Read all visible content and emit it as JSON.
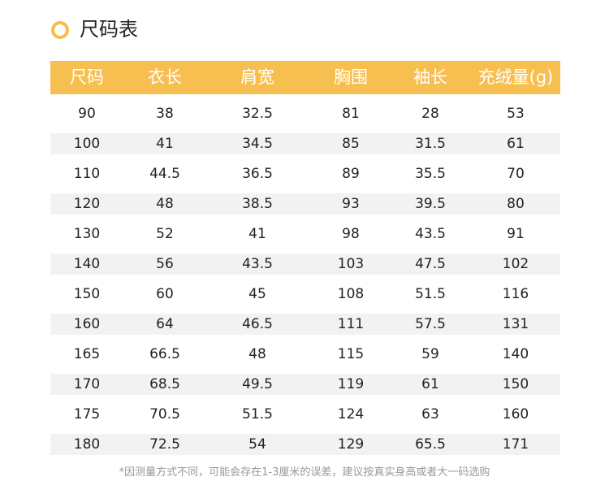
{
  "title": "尺码表",
  "table": {
    "header": [
      "尺码",
      "衣长",
      "肩宽",
      "胸围",
      "袖长",
      "充绒量(g)"
    ],
    "rows": [
      [
        "90",
        "38",
        "32.5",
        "81",
        "28",
        "53"
      ],
      [
        "100",
        "41",
        "34.5",
        "85",
        "31.5",
        "61"
      ],
      [
        "110",
        "44.5",
        "36.5",
        "89",
        "35.5",
        "70"
      ],
      [
        "120",
        "48",
        "38.5",
        "93",
        "39.5",
        "80"
      ],
      [
        "130",
        "52",
        "41",
        "98",
        "43.5",
        "91"
      ],
      [
        "140",
        "56",
        "43.5",
        "103",
        "47.5",
        "102"
      ],
      [
        "150",
        "60",
        "45",
        "108",
        "51.5",
        "116"
      ],
      [
        "160",
        "64",
        "46.5",
        "111",
        "57.5",
        "131"
      ],
      [
        "165",
        "66.5",
        "48",
        "115",
        "59",
        "140"
      ],
      [
        "170",
        "68.5",
        "49.5",
        "119",
        "61",
        "150"
      ],
      [
        "175",
        "70.5",
        "51.5",
        "124",
        "63",
        "160"
      ],
      [
        "180",
        "72.5",
        "54",
        "129",
        "65.5",
        "171"
      ]
    ]
  },
  "note": "*因测量方式不同，可能会存在1-3厘米的误差，建议按真实身高或者大一码选购"
}
